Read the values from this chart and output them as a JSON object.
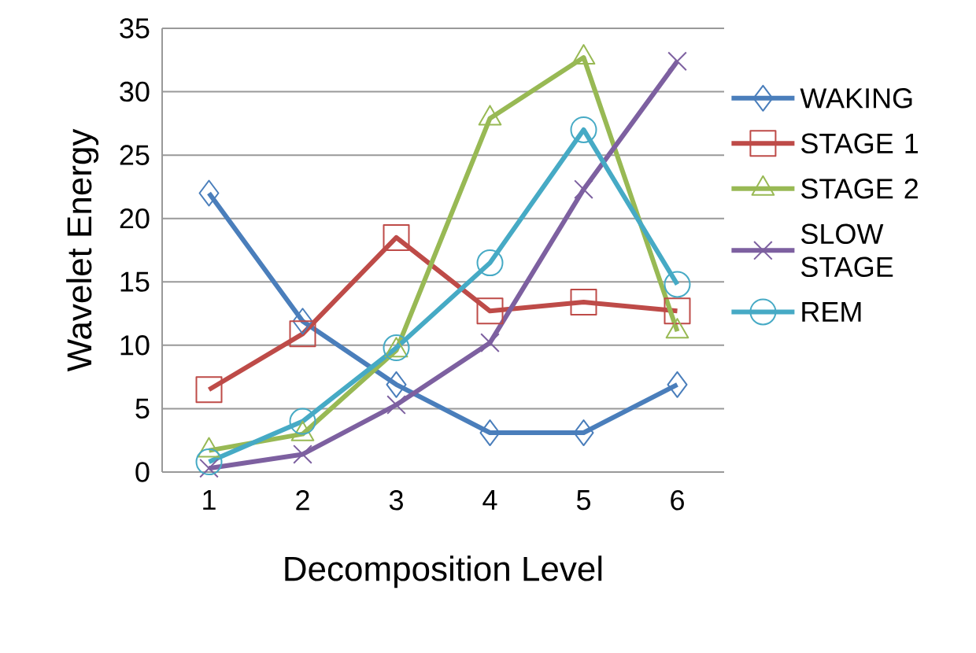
{
  "chart_data": {
    "type": "line",
    "xlabel": "Decomposition Level",
    "ylabel": "Wavelet Energy",
    "categories": [
      "1",
      "2",
      "3",
      "4",
      "5",
      "6"
    ],
    "series": [
      {
        "name": "WAKING",
        "color": "#4a7ebb",
        "marker": "diamond",
        "values": [
          22.0,
          11.9,
          6.9,
          3.1,
          3.1,
          6.9
        ]
      },
      {
        "name": "STAGE 1",
        "color": "#be4b48",
        "marker": "square",
        "values": [
          6.5,
          10.9,
          18.5,
          12.7,
          13.4,
          12.7
        ]
      },
      {
        "name": "STAGE 2",
        "color": "#98b954",
        "marker": "triangle",
        "values": [
          1.7,
          3.0,
          9.6,
          27.9,
          32.7,
          11.1
        ]
      },
      {
        "name": "SLOW STAGE",
        "color": "#7d60a0",
        "marker": "cross",
        "values": [
          0.3,
          1.4,
          5.3,
          10.2,
          22.3,
          32.4
        ]
      },
      {
        "name": "REM",
        "color": "#46aac5",
        "marker": "circle",
        "values": [
          0.8,
          4.0,
          9.8,
          16.5,
          27.0,
          14.8
        ]
      }
    ],
    "ylim": [
      0,
      35
    ],
    "yticks": [
      0,
      5,
      10,
      15,
      20,
      25,
      30,
      35
    ],
    "grid": "y",
    "legend": "right",
    "line_style": "solid"
  }
}
